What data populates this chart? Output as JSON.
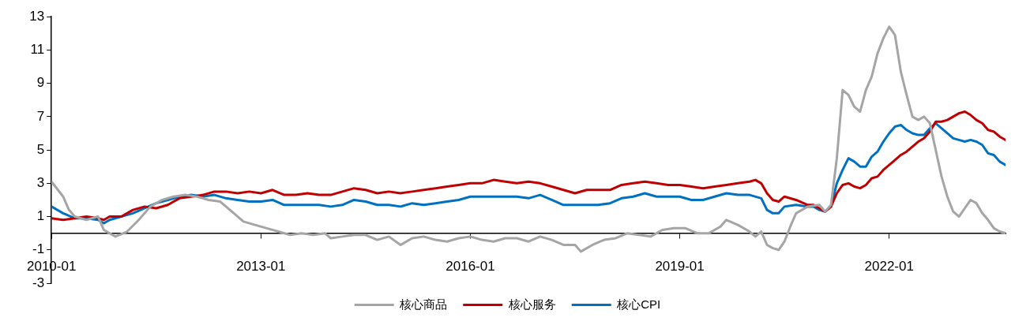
{
  "chart_data": {
    "type": "line",
    "xlim": [
      "2010-01",
      "2023-09"
    ],
    "xticks": [
      "2010-01",
      "2013-01",
      "2016-01",
      "2019-01",
      "2022-01"
    ],
    "ylim": [
      -3,
      13
    ],
    "yticks": [
      -3,
      -1,
      1,
      3,
      5,
      7,
      9,
      11,
      13
    ],
    "grid": false,
    "legend": "bottom",
    "marker": "none",
    "line_style": "solid",
    "series": [
      {
        "name": "核心商品",
        "color": "#a5a5a5",
        "x": [
          "2010-01",
          "2010-03",
          "2010-04",
          "2010-05",
          "2010-07",
          "2010-09",
          "2010-10",
          "2010-12",
          "2011-02",
          "2011-04",
          "2011-06",
          "2011-08",
          "2011-10",
          "2011-12",
          "2012-02",
          "2012-04",
          "2012-06",
          "2012-08",
          "2012-10",
          "2012-12",
          "2013-02",
          "2013-04",
          "2013-06",
          "2013-08",
          "2013-10",
          "2013-12",
          "2014-01",
          "2014-03",
          "2014-05",
          "2014-07",
          "2014-09",
          "2014-11",
          "2015-01",
          "2015-03",
          "2015-05",
          "2015-07",
          "2015-09",
          "2015-11",
          "2016-01",
          "2016-03",
          "2016-05",
          "2016-07",
          "2016-09",
          "2016-11",
          "2017-01",
          "2017-03",
          "2017-05",
          "2017-07",
          "2017-08",
          "2017-10",
          "2017-12",
          "2018-02",
          "2018-04",
          "2018-06",
          "2018-08",
          "2018-10",
          "2018-12",
          "2019-02",
          "2019-04",
          "2019-06",
          "2019-08",
          "2019-09",
          "2019-11",
          "2020-01",
          "2020-02",
          "2020-03",
          "2020-04",
          "2020-05",
          "2020-06",
          "2020-07",
          "2020-08",
          "2020-09",
          "2020-11",
          "2021-01",
          "2021-02",
          "2021-03",
          "2021-04",
          "2021-05",
          "2021-06",
          "2021-07",
          "2021-08",
          "2021-09",
          "2021-10",
          "2021-11",
          "2021-12",
          "2022-01",
          "2022-02",
          "2022-03",
          "2022-04",
          "2022-05",
          "2022-06",
          "2022-07",
          "2022-08",
          "2022-09",
          "2022-10",
          "2022-11",
          "2022-12",
          "2023-01",
          "2023-02",
          "2023-03",
          "2023-04",
          "2023-05",
          "2023-06",
          "2023-07",
          "2023-08",
          "2023-09"
        ],
        "values": [
          3.1,
          2.2,
          1.4,
          1.0,
          0.8,
          1.0,
          0.2,
          -0.2,
          0.1,
          0.8,
          1.6,
          2.0,
          2.2,
          2.3,
          2.2,
          2.0,
          1.9,
          1.3,
          0.7,
          0.5,
          0.3,
          0.1,
          -0.1,
          0.0,
          -0.1,
          0.0,
          -0.3,
          -0.2,
          -0.1,
          -0.1,
          -0.4,
          -0.2,
          -0.7,
          -0.3,
          -0.2,
          -0.4,
          -0.5,
          -0.3,
          -0.2,
          -0.4,
          -0.5,
          -0.3,
          -0.3,
          -0.5,
          -0.2,
          -0.4,
          -0.7,
          -0.7,
          -1.1,
          -0.7,
          -0.4,
          -0.3,
          0.0,
          -0.1,
          -0.2,
          0.2,
          0.3,
          0.3,
          0.0,
          0.0,
          0.4,
          0.8,
          0.5,
          0.1,
          -0.2,
          0.1,
          -0.7,
          -0.9,
          -1.0,
          -0.5,
          0.4,
          1.2,
          1.6,
          1.7,
          1.3,
          1.7,
          4.5,
          8.6,
          8.3,
          7.6,
          7.3,
          8.6,
          9.4,
          10.8,
          11.7,
          12.4,
          11.9,
          9.7,
          8.3,
          7.0,
          6.8,
          7.0,
          6.6,
          5.0,
          3.4,
          2.2,
          1.3,
          1.0,
          1.5,
          2.0,
          1.8,
          1.2,
          0.8,
          0.3,
          0.1,
          0.0
        ]
      },
      {
        "name": "核心服务",
        "color": "#c00000",
        "x": [
          "2010-01",
          "2010-03",
          "2010-05",
          "2010-07",
          "2010-09",
          "2010-10",
          "2010-11",
          "2011-01",
          "2011-03",
          "2011-05",
          "2011-07",
          "2011-09",
          "2011-11",
          "2012-01",
          "2012-03",
          "2012-05",
          "2012-07",
          "2012-09",
          "2012-11",
          "2013-01",
          "2013-03",
          "2013-05",
          "2013-07",
          "2013-09",
          "2013-11",
          "2014-01",
          "2014-03",
          "2014-05",
          "2014-07",
          "2014-09",
          "2014-11",
          "2015-01",
          "2015-03",
          "2015-05",
          "2015-07",
          "2015-09",
          "2015-11",
          "2016-01",
          "2016-03",
          "2016-05",
          "2016-07",
          "2016-09",
          "2016-11",
          "2017-01",
          "2017-03",
          "2017-05",
          "2017-07",
          "2017-09",
          "2017-11",
          "2018-01",
          "2018-03",
          "2018-05",
          "2018-07",
          "2018-09",
          "2018-11",
          "2019-01",
          "2019-03",
          "2019-05",
          "2019-07",
          "2019-09",
          "2019-11",
          "2020-01",
          "2020-02",
          "2020-03",
          "2020-04",
          "2020-05",
          "2020-06",
          "2020-07",
          "2020-09",
          "2020-11",
          "2020-12",
          "2021-01",
          "2021-02",
          "2021-03",
          "2021-04",
          "2021-05",
          "2021-06",
          "2021-07",
          "2021-08",
          "2021-09",
          "2021-10",
          "2021-11",
          "2021-12",
          "2022-01",
          "2022-02",
          "2022-03",
          "2022-04",
          "2022-05",
          "2022-06",
          "2022-07",
          "2022-08",
          "2022-09",
          "2022-10",
          "2022-11",
          "2022-12",
          "2023-01",
          "2023-02",
          "2023-03",
          "2023-04",
          "2023-05",
          "2023-06",
          "2023-07",
          "2023-08",
          "2023-09"
        ],
        "values": [
          0.9,
          0.8,
          0.9,
          1.0,
          0.9,
          0.8,
          1.0,
          1.0,
          1.4,
          1.6,
          1.5,
          1.7,
          2.1,
          2.2,
          2.3,
          2.5,
          2.5,
          2.4,
          2.5,
          2.4,
          2.6,
          2.3,
          2.3,
          2.4,
          2.3,
          2.3,
          2.5,
          2.7,
          2.6,
          2.4,
          2.5,
          2.4,
          2.5,
          2.6,
          2.7,
          2.8,
          2.9,
          3.0,
          3.0,
          3.2,
          3.1,
          3.0,
          3.1,
          3.0,
          2.8,
          2.6,
          2.4,
          2.6,
          2.6,
          2.6,
          2.9,
          3.0,
          3.1,
          3.0,
          2.9,
          2.9,
          2.8,
          2.7,
          2.8,
          2.9,
          3.0,
          3.1,
          3.2,
          3.0,
          2.4,
          2.0,
          1.9,
          2.2,
          2.0,
          1.7,
          1.7,
          1.5,
          1.3,
          1.6,
          2.4,
          2.9,
          3.0,
          2.8,
          2.7,
          2.9,
          3.3,
          3.4,
          3.8,
          4.1,
          4.4,
          4.7,
          4.9,
          5.2,
          5.5,
          5.7,
          6.1,
          6.7,
          6.7,
          6.8,
          7.0,
          7.2,
          7.3,
          7.1,
          6.8,
          6.6,
          6.2,
          6.1,
          5.8,
          5.6
        ]
      },
      {
        "name": "核心CPI",
        "color": "#0070c0",
        "x": [
          "2010-01",
          "2010-03",
          "2010-05",
          "2010-07",
          "2010-09",
          "2010-10",
          "2010-11",
          "2011-01",
          "2011-03",
          "2011-05",
          "2011-07",
          "2011-09",
          "2011-11",
          "2012-01",
          "2012-03",
          "2012-05",
          "2012-07",
          "2012-09",
          "2012-11",
          "2013-01",
          "2013-03",
          "2013-05",
          "2013-07",
          "2013-09",
          "2013-11",
          "2014-01",
          "2014-03",
          "2014-05",
          "2014-07",
          "2014-09",
          "2014-11",
          "2015-01",
          "2015-03",
          "2015-05",
          "2015-07",
          "2015-09",
          "2015-11",
          "2016-01",
          "2016-03",
          "2016-05",
          "2016-07",
          "2016-09",
          "2016-11",
          "2017-01",
          "2017-03",
          "2017-05",
          "2017-07",
          "2017-09",
          "2017-11",
          "2018-01",
          "2018-03",
          "2018-05",
          "2018-07",
          "2018-09",
          "2018-11",
          "2019-01",
          "2019-03",
          "2019-05",
          "2019-07",
          "2019-09",
          "2019-11",
          "2020-01",
          "2020-03",
          "2020-04",
          "2020-05",
          "2020-06",
          "2020-07",
          "2020-09",
          "2020-11",
          "2020-12",
          "2021-01",
          "2021-02",
          "2021-03",
          "2021-04",
          "2021-05",
          "2021-06",
          "2021-07",
          "2021-08",
          "2021-09",
          "2021-10",
          "2021-11",
          "2021-12",
          "2022-01",
          "2022-02",
          "2022-03",
          "2022-04",
          "2022-05",
          "2022-06",
          "2022-07",
          "2022-08",
          "2022-09",
          "2022-10",
          "2022-11",
          "2022-12",
          "2023-01",
          "2023-02",
          "2023-03",
          "2023-04",
          "2023-05",
          "2023-06",
          "2023-07",
          "2023-08",
          "2023-09"
        ],
        "values": [
          1.6,
          1.2,
          0.9,
          0.9,
          0.8,
          0.6,
          0.8,
          1.0,
          1.2,
          1.5,
          1.8,
          2.0,
          2.2,
          2.3,
          2.2,
          2.3,
          2.1,
          2.0,
          1.9,
          1.9,
          2.0,
          1.7,
          1.7,
          1.7,
          1.7,
          1.6,
          1.7,
          2.0,
          1.9,
          1.7,
          1.7,
          1.6,
          1.8,
          1.7,
          1.8,
          1.9,
          2.0,
          2.2,
          2.2,
          2.2,
          2.2,
          2.2,
          2.1,
          2.3,
          2.0,
          1.7,
          1.7,
          1.7,
          1.7,
          1.8,
          2.1,
          2.2,
          2.4,
          2.2,
          2.2,
          2.2,
          2.0,
          2.0,
          2.2,
          2.4,
          2.3,
          2.3,
          2.1,
          1.4,
          1.2,
          1.2,
          1.6,
          1.7,
          1.6,
          1.6,
          1.4,
          1.3,
          1.6,
          3.0,
          3.8,
          4.5,
          4.3,
          4.0,
          4.0,
          4.6,
          4.9,
          5.5,
          6.0,
          6.4,
          6.5,
          6.2,
          6.0,
          5.9,
          5.9,
          6.3,
          6.6,
          6.3,
          6.0,
          5.7,
          5.6,
          5.5,
          5.6,
          5.5,
          5.3,
          4.8,
          4.7,
          4.3,
          4.1
        ]
      }
    ]
  }
}
